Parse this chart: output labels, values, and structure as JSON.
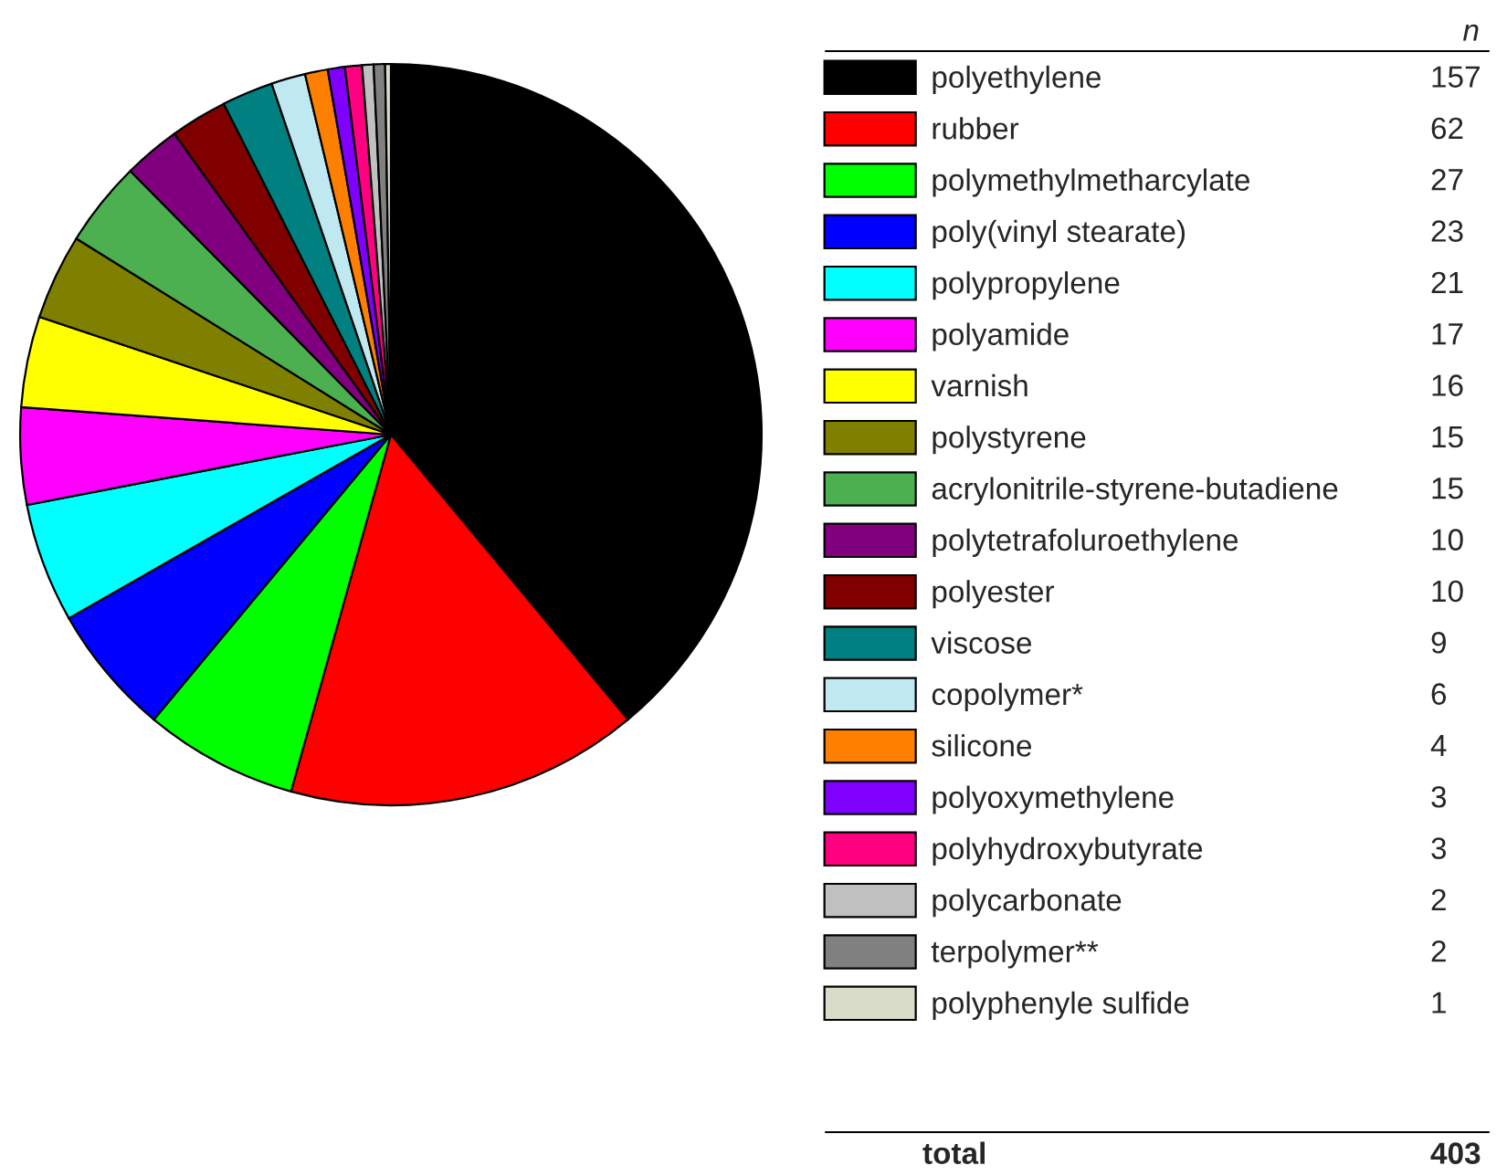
{
  "chart_data": {
    "type": "pie",
    "categories": [
      "polyethylene",
      "rubber",
      "polymethylmetharcylate",
      "poly(vinyl stearate)",
      "polypropylene",
      "polyamide",
      "varnish",
      "polystyrene",
      "acrylonitrile-styrene-butadiene",
      "polytetrafoluroethylene",
      "polyester",
      "viscose",
      "copolymer*",
      "silicone",
      "polyoxymethylene",
      "polyhydroxybutyrate",
      "polycarbonate",
      "terpolymer**",
      "polyphenyle sulfide"
    ],
    "values": [
      157,
      62,
      27,
      23,
      21,
      17,
      16,
      15,
      15,
      10,
      10,
      9,
      6,
      4,
      3,
      3,
      2,
      2,
      1
    ],
    "colors": [
      "#000000",
      "#ff0000",
      "#00ff00",
      "#0000ff",
      "#00ffff",
      "#ff00ff",
      "#ffff00",
      "#808000",
      "#4caf50",
      "#800080",
      "#800000",
      "#008080",
      "#c0e8f0",
      "#ff8000",
      "#8000ff",
      "#ff0080",
      "#c0c0c0",
      "#808080",
      "#d8dcc8"
    ],
    "legend": "right",
    "legend_title": "n",
    "data_labels": true,
    "annotations": [
      "total",
      "403"
    ]
  }
}
